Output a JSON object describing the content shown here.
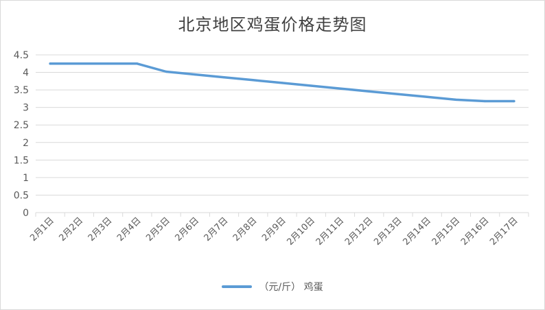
{
  "chart_data": {
    "type": "line",
    "title": "北京地区鸡蛋价格走势图",
    "categories": [
      "2月1日",
      "2月2日",
      "2月3日",
      "2月4日",
      "2月5日",
      "2月6日",
      "2月7日",
      "2月8日",
      "2月9日",
      "2月10日",
      "2月11日",
      "2月12日",
      "2月13日",
      "2月14日",
      "2月15日",
      "2月16日",
      "2月17日"
    ],
    "series": [
      {
        "name": "（元/斤） 鸡蛋",
        "color": "#5b9bd5",
        "values": [
          4.25,
          4.25,
          4.25,
          4.25,
          4.02,
          3.94,
          3.86,
          3.78,
          3.7,
          3.62,
          3.54,
          3.46,
          3.38,
          3.3,
          3.22,
          3.18,
          3.18
        ]
      }
    ],
    "y_ticks": [
      "0",
      "0.5",
      "1",
      "1.5",
      "2",
      "2.5",
      "3",
      "3.5",
      "4",
      "4.5"
    ],
    "ylim": [
      0,
      4.5
    ],
    "grid": true,
    "legend_position": "bottom"
  }
}
